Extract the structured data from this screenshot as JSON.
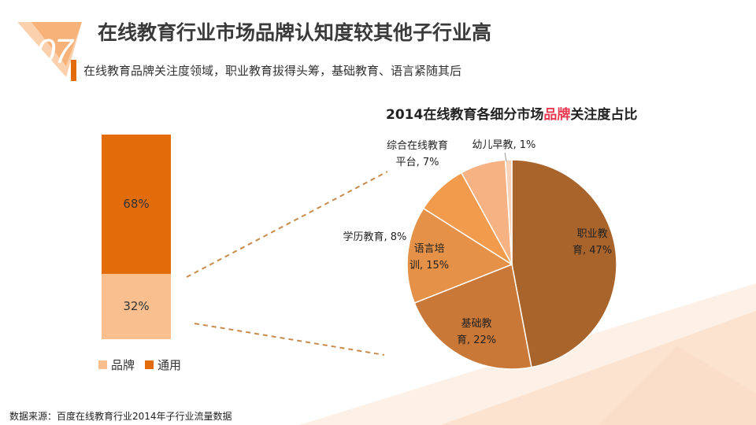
{
  "header": {
    "number": "07",
    "title": "在线教育行业市场品牌认知度较其他子行业高",
    "subtitle": "在线教育品牌关注度领域，职业教育拔得头筹，基础教育、语言紧随其后"
  },
  "source": "数据来源：百度在线教育行业2014年子行业流量数据",
  "colors": {
    "accent": "#e36c0a",
    "brand": "#f9bf8f",
    "general": "#e36c0a",
    "title_highlight": "#e8384f"
  },
  "chart_data": [
    {
      "type": "bar",
      "stacked": true,
      "categories": [
        ""
      ],
      "series": [
        {
          "name": "品牌",
          "values": [
            32
          ],
          "label": "32%"
        },
        {
          "name": "通用",
          "values": [
            68
          ],
          "label": "68%"
        }
      ],
      "ylim": [
        0,
        100
      ],
      "legend": [
        "品牌",
        "通用"
      ],
      "legend_position": "bottom"
    },
    {
      "type": "pie",
      "title_prefix": "2014在线教育各细分市场",
      "title_highlight": "品牌",
      "title_suffix": "关注度占比",
      "slices": [
        {
          "label_lines": [
            "职业教",
            "育, 47%"
          ],
          "value": 47,
          "color": "#a9642c"
        },
        {
          "label_lines": [
            "基础教",
            "育, 22%"
          ],
          "value": 22,
          "color": "#c97838"
        },
        {
          "label_lines": [
            "语言培",
            "训, 15%"
          ],
          "value": 15,
          "color": "#e59148"
        },
        {
          "label_lines": [
            "学历教育, 8%"
          ],
          "value": 8,
          "color": "#f39b4c"
        },
        {
          "label_lines": [
            "综合在线教育",
            "平台, 7%"
          ],
          "value": 7,
          "color": "#f7b284"
        },
        {
          "label_lines": [
            "幼儿早教, 1%"
          ],
          "value": 1,
          "color": "#fbd2b8"
        }
      ]
    }
  ]
}
